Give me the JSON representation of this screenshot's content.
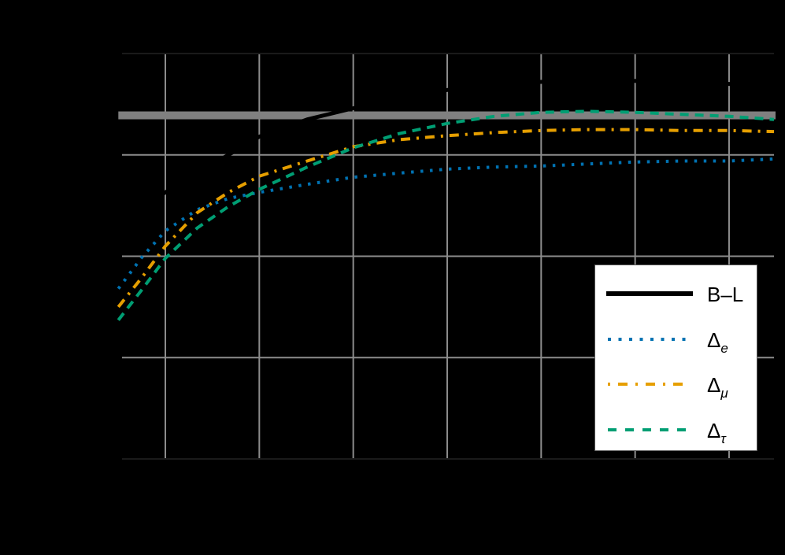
{
  "chart_data": {
    "type": "line",
    "title": "",
    "xlabel": "",
    "ylabel": "",
    "xlim": [
      0.5,
      7.48
    ],
    "ylim": [
      0,
      4
    ],
    "grid": true,
    "background": "#000000",
    "x_gridlines": [
      1,
      2,
      3,
      4,
      5,
      6,
      7
    ],
    "y_gridlines": [
      0,
      1,
      2,
      3,
      4
    ],
    "reference_band": {
      "y": 3.39,
      "color": "#808080",
      "thickness_px": 10
    },
    "x": [
      0.5,
      0.75,
      1,
      1.34,
      1.67,
      2,
      2.51,
      3,
      3.49,
      4,
      4.5,
      5,
      5.49,
      6,
      6.5,
      7,
      7.48
    ],
    "series": [
      {
        "name": "B–L",
        "key": "BL",
        "color": "#000000",
        "style": "solid",
        "x": [
          0.5,
          1,
          1.67,
          2,
          2.51,
          3,
          3.49,
          4,
          4.5,
          5,
          5.49,
          6,
          6.5,
          7,
          7.48
        ],
        "values": [
          2.34,
          2.63,
          3.0,
          3.18,
          3.35,
          3.46,
          3.57,
          3.64,
          3.69,
          3.72,
          3.73,
          3.73,
          3.71,
          3.7,
          3.68
        ]
      },
      {
        "name": "Δe",
        "key": "e",
        "color": "#0072B2",
        "style": "dotted",
        "values": [
          1.68,
          1.99,
          2.25,
          2.46,
          2.57,
          2.63,
          2.71,
          2.78,
          2.82,
          2.86,
          2.88,
          2.89,
          2.91,
          2.93,
          2.94,
          2.94,
          2.96
        ]
      },
      {
        "name": "Δμ",
        "key": "mu",
        "color": "#E69F00",
        "style": "dashdot",
        "values": [
          1.5,
          1.79,
          2.1,
          2.43,
          2.63,
          2.79,
          2.94,
          3.08,
          3.15,
          3.19,
          3.22,
          3.24,
          3.25,
          3.25,
          3.24,
          3.24,
          3.23
        ]
      },
      {
        "name": "Δτ",
        "key": "tau",
        "color": "#009E73",
        "style": "dashed",
        "values": [
          1.37,
          1.67,
          1.98,
          2.28,
          2.49,
          2.66,
          2.88,
          3.07,
          3.21,
          3.31,
          3.38,
          3.42,
          3.43,
          3.42,
          3.4,
          3.38,
          3.35
        ]
      }
    ],
    "legend": {
      "position": "lower right",
      "entries": [
        {
          "base": "B–L",
          "sub": ""
        },
        {
          "base": "Δ",
          "sub": "e"
        },
        {
          "base": "Δ",
          "sub": "μ"
        },
        {
          "base": "Δ",
          "sub": "τ"
        }
      ]
    }
  }
}
